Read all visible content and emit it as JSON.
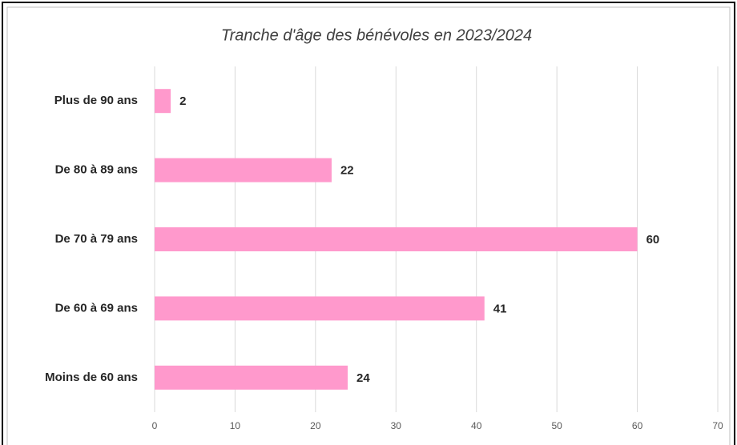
{
  "chart_data": {
    "type": "hbar",
    "title": "Tranche d'âge des bénévoles en 2023/2024",
    "categories": [
      "Plus de 90 ans",
      "De 80 à 89 ans",
      "De 70 à 79 ans",
      "De 60 à 69 ans",
      "Moins de 60 ans"
    ],
    "values": [
      2,
      22,
      60,
      41,
      24
    ],
    "color": "#ff99cc",
    "xlim": [
      0,
      70
    ],
    "xticks": [
      0,
      10,
      20,
      30,
      40,
      50,
      60,
      70
    ],
    "grid": true
  }
}
